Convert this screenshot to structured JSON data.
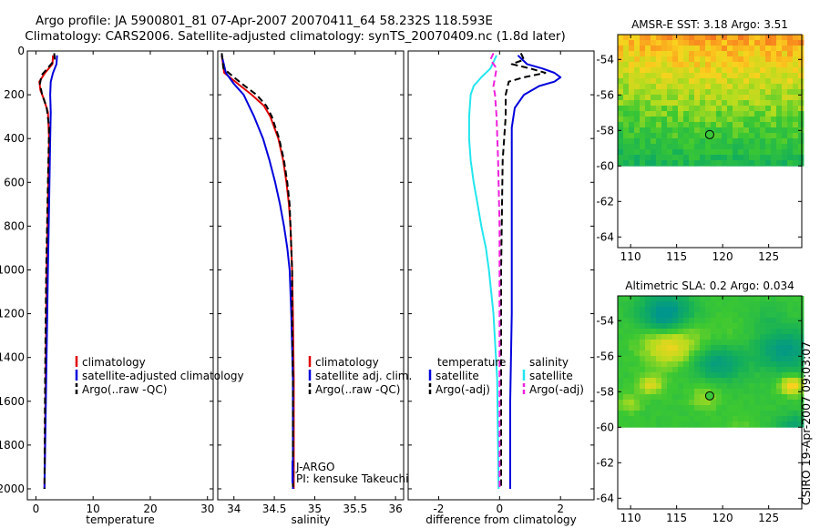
{
  "header": {
    "title_line1": "Argo profile: JA 5900801_81 07-Apr-2007 20070411_64 58.232S 118.593E",
    "title_line2": "Climatology: CARS2006. Satellite-adjusted climatology: synTS_20070409.nc (1.8d later)"
  },
  "side_label": "CSIRO 19-Apr-2007 09:03:07",
  "colors": {
    "climatology": "#e00000",
    "satellite": "#0000dd",
    "argo": "#000000",
    "sal_satellite": "#22e6ee",
    "sal_argo": "#ee22dd",
    "land": "#ffffff"
  },
  "chart_data": [
    {
      "type": "line",
      "xlabel": "temperature",
      "xlim": [
        -1.5,
        31
      ],
      "ylim": [
        0,
        2050
      ],
      "xticks": [
        0,
        10,
        20,
        30
      ],
      "yticks": [
        0,
        200,
        400,
        600,
        800,
        1000,
        1200,
        1400,
        1600,
        1800,
        2000
      ],
      "legend": [
        "climatology",
        "satellite-adjusted climatology",
        "Argo(..raw -QC)"
      ],
      "legend_placement": "lower-right",
      "series": [
        {
          "name": "climatology",
          "color": "climatology",
          "dash": "solid",
          "depth": [
            20,
            60,
            100,
            140,
            180,
            220,
            280,
            400,
            700,
            1000,
            1500,
            2000
          ],
          "values": [
            3.0,
            2.9,
            1.6,
            0.6,
            0.8,
            1.4,
            2.1,
            2.3,
            2.1,
            1.9,
            1.7,
            1.5
          ]
        },
        {
          "name": "satellite-adjusted climatology",
          "color": "satellite",
          "dash": "solid",
          "depth": [
            20,
            60,
            100,
            140,
            200,
            280,
            400,
            700,
            1000,
            1500,
            2000
          ],
          "values": [
            3.7,
            3.6,
            3.0,
            2.6,
            2.5,
            2.6,
            2.5,
            2.3,
            2.1,
            1.8,
            1.5
          ]
        },
        {
          "name": "Argo(..raw -QC)",
          "color": "argo",
          "dash": "dashed",
          "depth": [
            10,
            40,
            80,
            110,
            150,
            200,
            260,
            350,
            600,
            1000,
            1500,
            2000
          ],
          "values": [
            3.2,
            3.3,
            2.0,
            1.0,
            0.7,
            1.1,
            1.9,
            2.3,
            2.1,
            1.8,
            1.6,
            1.5
          ]
        }
      ]
    },
    {
      "type": "line",
      "xlabel": "salinity",
      "xlim": [
        33.8,
        36.1
      ],
      "ylim": [
        0,
        2050
      ],
      "xticks": [
        34,
        34.5,
        35,
        35.5,
        36
      ],
      "legend": [
        "climatology",
        "satellite adj. clim.",
        "Argo(..raw -QC)"
      ],
      "legend_placement": "lower-right",
      "annotation": [
        "J-ARGO",
        "PI: kensuke Takeuchi"
      ],
      "series": [
        {
          "name": "climatology",
          "color": "climatology",
          "dash": "solid",
          "depth": [
            20,
            100,
            150,
            200,
            250,
            300,
            400,
            500,
            600,
            700,
            800,
            1000,
            1200,
            1500,
            2000
          ],
          "values": [
            33.85,
            33.88,
            34.05,
            34.22,
            34.37,
            34.45,
            34.55,
            34.61,
            34.65,
            34.68,
            34.7,
            34.72,
            34.73,
            34.74,
            34.74
          ]
        },
        {
          "name": "satellite adj. clim.",
          "color": "satellite",
          "dash": "solid",
          "depth": [
            20,
            100,
            150,
            200,
            300,
            400,
            500,
            600,
            700,
            800,
            900,
            1000,
            1200,
            1500,
            2000
          ],
          "values": [
            33.85,
            33.9,
            34.0,
            34.12,
            34.25,
            34.36,
            34.44,
            34.51,
            34.57,
            34.62,
            34.66,
            34.69,
            34.71,
            34.73,
            34.73
          ]
        },
        {
          "name": "Argo(..raw -QC)",
          "color": "argo",
          "dash": "dashed",
          "depth": [
            10,
            80,
            150,
            200,
            250,
            300,
            400,
            500,
            600,
            700,
            800,
            1000,
            1200,
            1500,
            2000
          ],
          "values": [
            33.85,
            33.87,
            34.1,
            34.28,
            34.4,
            34.47,
            34.56,
            34.62,
            34.66,
            34.69,
            34.7,
            34.72,
            34.72,
            34.73,
            34.73
          ]
        }
      ]
    },
    {
      "type": "line",
      "xlabel": "difference from climatology",
      "xlim": [
        -3,
        3.1
      ],
      "ylim": [
        0,
        2050
      ],
      "xticks": [
        -2,
        0,
        2
      ],
      "legend_groups": [
        {
          "heading": "temperature",
          "items": [
            "satellite",
            "Argo(-adj)"
          ]
        },
        {
          "heading": "salinity",
          "items": [
            "satellite",
            "Argo(-adj)"
          ]
        }
      ],
      "legend_placement": "lower-center",
      "series": [
        {
          "name": "satellite",
          "group": "temperature",
          "color": "satellite",
          "dash": "solid",
          "depth": [
            20,
            60,
            80,
            100,
            120,
            140,
            160,
            200,
            260,
            350,
            500,
            800,
            1200,
            1600,
            2000
          ],
          "values": [
            0.6,
            0.9,
            1.4,
            1.8,
            2.0,
            1.8,
            1.3,
            0.8,
            0.5,
            0.4,
            0.4,
            0.4,
            0.4,
            0.35,
            0.35
          ]
        },
        {
          "name": "Argo(-adj)",
          "group": "temperature",
          "color": "argo",
          "dash": "dashed",
          "depth": [
            10,
            40,
            60,
            80,
            100,
            120,
            140,
            200,
            300,
            500,
            1000,
            1500,
            2000
          ],
          "values": [
            0.7,
            0.8,
            0.4,
            1.0,
            1.5,
            0.8,
            0.3,
            0.2,
            0.2,
            0.1,
            0.05,
            0.05,
            0.05
          ]
        },
        {
          "name": "satellite",
          "group": "salinity",
          "color": "sal_satellite",
          "dash": "solid",
          "depth": [
            20,
            80,
            120,
            160,
            200,
            300,
            400,
            500,
            600,
            700,
            800,
            900,
            1000,
            1200,
            1500,
            2000
          ],
          "values": [
            -0.1,
            -0.3,
            -0.6,
            -0.85,
            -0.95,
            -1.0,
            -1.0,
            -0.95,
            -0.85,
            -0.72,
            -0.6,
            -0.45,
            -0.35,
            -0.2,
            -0.08,
            -0.03
          ]
        },
        {
          "name": "Argo(-adj)",
          "group": "salinity",
          "color": "sal_argo",
          "dash": "dashed",
          "depth": [
            10,
            40,
            80,
            120,
            160,
            200,
            300,
            500,
            800,
            1200,
            1600,
            2000
          ],
          "values": [
            -0.2,
            -0.3,
            -0.1,
            -0.15,
            -0.2,
            -0.15,
            -0.1,
            -0.05,
            0.0,
            0.0,
            0.0,
            0.0
          ]
        }
      ]
    },
    {
      "type": "heatmap",
      "title": "AMSR-E SST: 3.18 Argo: 3.51",
      "xlim": [
        108.6,
        128.6
      ],
      "ylim": [
        -64.6,
        -52.6
      ],
      "xticks": [
        110,
        115,
        120,
        125
      ],
      "yticks": [
        -54,
        -56,
        -58,
        -60,
        -62,
        -64
      ],
      "data_extent_lat": [
        -60,
        -52.6
      ],
      "marker": {
        "lon": 118.593,
        "lat": -58.232
      },
      "field": "sst"
    },
    {
      "type": "heatmap",
      "title": "Altimetric SLA: 0.2 Argo: 0.034",
      "xlim": [
        108.6,
        128.6
      ],
      "ylim": [
        -64.6,
        -52.6
      ],
      "xticks": [
        110,
        115,
        120,
        125
      ],
      "yticks": [
        -54,
        -56,
        -58,
        -60,
        -62,
        -64
      ],
      "data_extent_lat": [
        -60,
        -52.6
      ],
      "marker": {
        "lon": 118.593,
        "lat": -58.232
      },
      "field": "sla"
    }
  ]
}
